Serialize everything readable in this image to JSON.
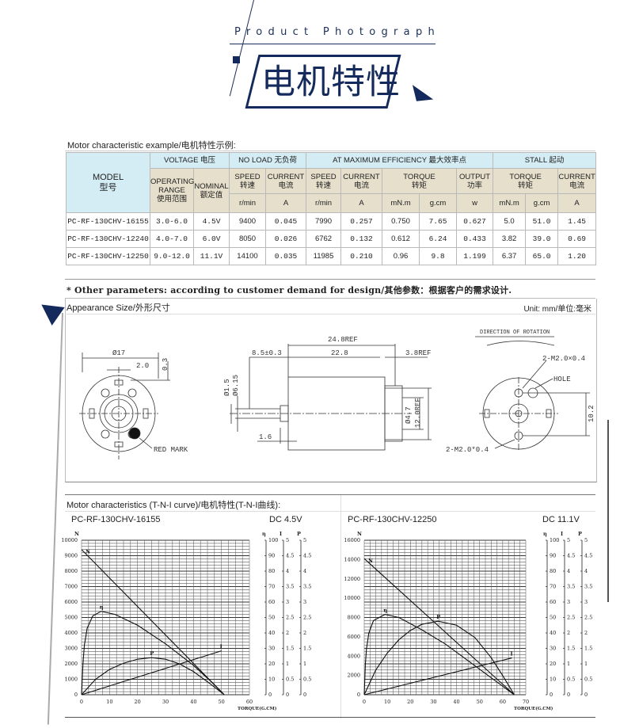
{
  "header": {
    "subtitle_en": "Product Photograph",
    "title_cn": "电机特性",
    "accent_color": "#14295c"
  },
  "table": {
    "caption": "Motor characteristic example/电机特性示例:",
    "model_header": [
      "MODEL",
      "型号"
    ],
    "groups": {
      "voltage": "VOLTAGE 电压",
      "no_load": "NO LOAD  无负荷",
      "max_eff": "AT MAXIMUM EFFICIENCY   最大效率点",
      "stall": "STALL  起动"
    },
    "sub": {
      "operating": [
        "OPERATING",
        "RANGE",
        "使用范围"
      ],
      "nominal": [
        "NOMINAL",
        "额定值"
      ],
      "speed": [
        "SPEED",
        "转速"
      ],
      "current": [
        "CURRENT",
        "电流"
      ],
      "torque": [
        "TORQUE",
        "转矩"
      ],
      "output": [
        "OUTPUT",
        "功率"
      ]
    },
    "units": [
      "r/min",
      "A",
      "r/min",
      "A",
      "mN.m",
      "g.cm",
      "w",
      "mN.m",
      "g.cm",
      "A"
    ],
    "rows": [
      [
        "PC-RF-130CHV-16155",
        "3.0-6.0",
        "4.5V",
        "9400",
        "0.045",
        "7990",
        "0.257",
        "0.750",
        "7.65",
        "0.627",
        "5.0",
        "51.0",
        "1.45"
      ],
      [
        "PC-RF-130CHV-12240",
        "4.0-7.0",
        "6.0V",
        "8050",
        "0.026",
        "6762",
        "0.132",
        "0.612",
        "6.24",
        "0.433",
        "3.82",
        "39.0",
        "0.69"
      ],
      [
        "PC-RF-130CHV-12250",
        "9.0-12.0",
        "11.1V",
        "14100",
        "0.035",
        "11985",
        "0.210",
        "0.96",
        "9.8",
        "1.199",
        "6.37",
        "65.0",
        "1.20"
      ]
    ]
  },
  "other_params": "* Other parameters: according to customer demand for design/其他参数：根据客户的需求设计.",
  "appearance": {
    "title": "Appearance Size/外形尺寸",
    "unit": "Unit: mm/单位:毫米",
    "labels": {
      "dia17": "Ø17",
      "w2": "2.0",
      "t03": "0.3",
      "red_mark": "RED MARK",
      "len248": "24.8REF",
      "len85": "8.5±0.3",
      "len228": "22.8",
      "len38": "3.8REF",
      "dia15": "Ø1.5",
      "dia615": "Ø6.15",
      "dia47": "Ø4.7",
      "h12": "12.0REF",
      "len16": "1.6",
      "rotation": "DIRECTION OF ROTATION",
      "m2a": "2-M2.0×0.4",
      "hole": "HOLE",
      "h102": "10.2",
      "m2b": "2-M2.0*0.4"
    }
  },
  "curves": {
    "title": "Motor characteristics (T-N-I curve)/电机特性(T-N-I曲线):",
    "charts": [
      {
        "model": "PC-RF-130CHV-16155",
        "voltage": "DC 4.5V"
      },
      {
        "model": "PC-RF-130CHV-12250",
        "voltage": "DC 11.1V"
      }
    ]
  },
  "chart_data": [
    {
      "type": "line",
      "xlabel": "TORQUE(G.CM)",
      "xlim": [
        0,
        60
      ],
      "xticks": [
        0,
        10,
        20,
        30,
        40,
        50,
        60
      ],
      "axes": {
        "N": {
          "range": [
            0,
            10000
          ],
          "step": 1000
        },
        "η": {
          "range": [
            0,
            100
          ],
          "step": 10
        },
        "I": {
          "range": [
            0,
            5
          ],
          "step": 0.5
        },
        "P": {
          "range": [
            0,
            5
          ],
          "step": 0.5
        }
      },
      "grid": true,
      "series": [
        {
          "name": "N",
          "axis": "N",
          "points": [
            [
              0,
              9400
            ],
            [
              51,
              0
            ]
          ]
        },
        {
          "name": "η",
          "axis": "η",
          "points": [
            [
              0,
              0
            ],
            [
              0.5,
              20
            ],
            [
              1,
              32
            ],
            [
              2,
              43
            ],
            [
              4,
              51
            ],
            [
              7,
              54
            ],
            [
              12,
              52
            ],
            [
              20,
              45
            ],
            [
              30,
              33
            ],
            [
              40,
              19
            ],
            [
              46,
              9
            ],
            [
              51,
              0
            ]
          ]
        },
        {
          "name": "I",
          "axis": "I",
          "points": [
            [
              0,
              0
            ],
            [
              50,
              1.42
            ]
          ]
        },
        {
          "name": "P",
          "axis": "P",
          "points": [
            [
              0,
              0
            ],
            [
              5,
              0.5
            ],
            [
              10,
              0.82
            ],
            [
              15,
              1.02
            ],
            [
              20,
              1.15
            ],
            [
              25,
              1.2
            ],
            [
              30,
              1.15
            ],
            [
              35,
              1.0
            ],
            [
              40,
              0.75
            ],
            [
              45,
              0.42
            ],
            [
              51,
              0
            ]
          ]
        }
      ]
    },
    {
      "type": "line",
      "xlabel": "TORQUE(G.CM)",
      "xlim": [
        0,
        70
      ],
      "xticks": [
        0,
        10,
        20,
        30,
        40,
        50,
        60,
        70
      ],
      "axes": {
        "N": {
          "range": [
            0,
            16000
          ],
          "step": 2000
        },
        "η": {
          "range": [
            0,
            100
          ],
          "step": 10
        },
        "I": {
          "range": [
            0,
            5
          ],
          "step": 0.5
        },
        "P": {
          "range": [
            0,
            5
          ],
          "step": 0.5
        }
      },
      "grid": true,
      "series": [
        {
          "name": "N",
          "axis": "N",
          "points": [
            [
              0,
              14100
            ],
            [
              65,
              0
            ]
          ]
        },
        {
          "name": "η",
          "axis": "η",
          "points": [
            [
              0,
              0
            ],
            [
              0.5,
              20
            ],
            [
              1,
              30
            ],
            [
              2,
              40
            ],
            [
              4,
              48
            ],
            [
              9,
              52
            ],
            [
              15,
              50
            ],
            [
              25,
              42
            ],
            [
              35,
              33
            ],
            [
              45,
              22
            ],
            [
              55,
              11
            ],
            [
              65,
              0
            ]
          ]
        },
        {
          "name": "I",
          "axis": "I",
          "points": [
            [
              0,
              0
            ],
            [
              64,
              1.19
            ]
          ]
        },
        {
          "name": "P",
          "axis": "P",
          "points": [
            [
              0,
              0
            ],
            [
              5,
              0.8
            ],
            [
              10,
              1.35
            ],
            [
              15,
              1.78
            ],
            [
              20,
              2.08
            ],
            [
              25,
              2.28
            ],
            [
              32,
              2.38
            ],
            [
              40,
              2.25
            ],
            [
              48,
              1.85
            ],
            [
              55,
              1.2
            ],
            [
              60,
              0.62
            ],
            [
              65,
              0
            ]
          ]
        }
      ]
    }
  ]
}
